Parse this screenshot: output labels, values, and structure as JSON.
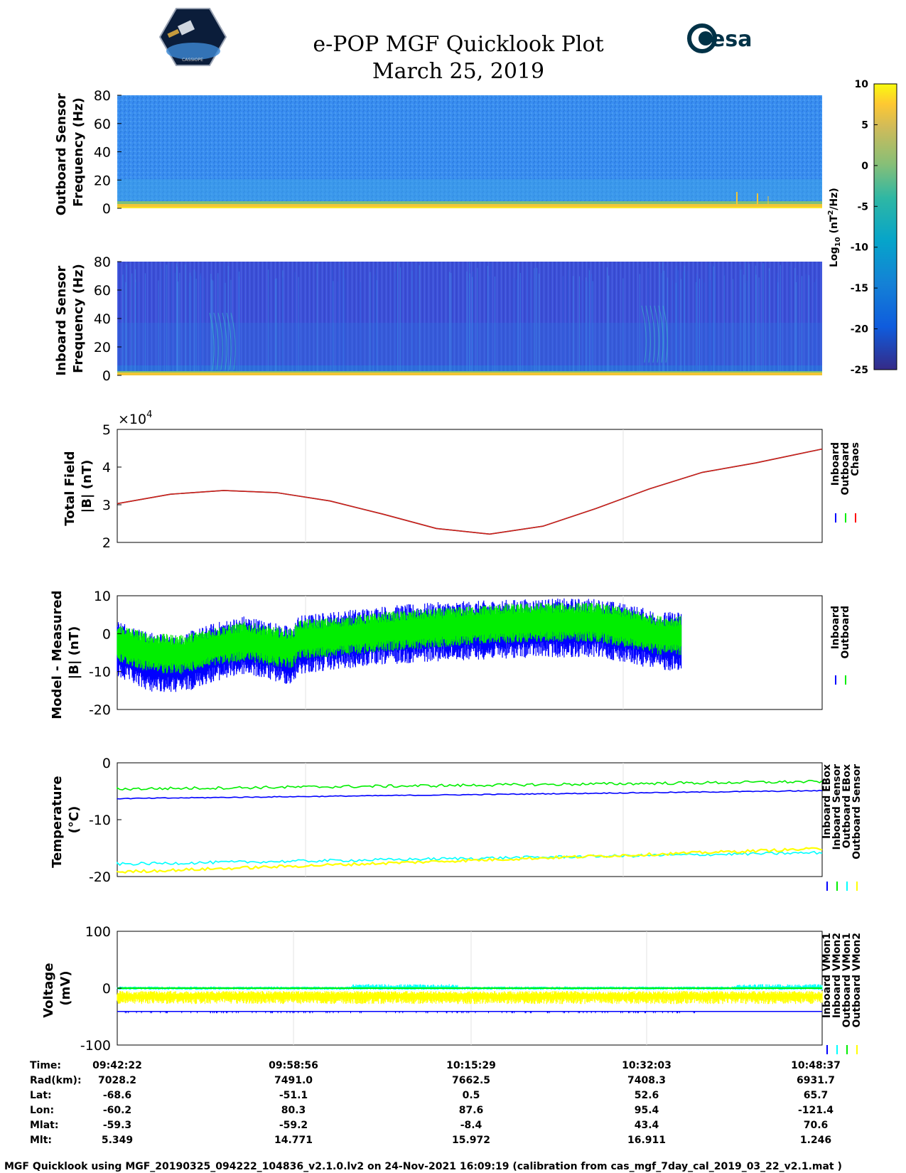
{
  "header": {
    "title": "e-POP MGF Quicklook Plot",
    "subtitle": "March 25, 2019",
    "esa_logo_text": "esa",
    "cassiope_logo_text": "CASSIOPE"
  },
  "colors": {
    "inboard": "#0000ff",
    "outboard": "#00ee00",
    "chaos": "#ff0000",
    "vmon2_inboard": "#00ffff",
    "vmon2_outboard": "#ffff00",
    "spectrogram_background": "#3b8eeb",
    "inboard_spectrogram_background": "#3f4fd6"
  },
  "chart_data": [
    {
      "type": "heatmap",
      "name": "outboard_spectrogram",
      "ylabel": [
        "Outboard Sensor",
        "Frequency (Hz)"
      ],
      "ylim": [
        0,
        80
      ],
      "yticks": [
        0,
        20,
        40,
        60,
        80
      ],
      "colorbar": {
        "label": "Log10 (nT^2/Hz)",
        "label_main": "Log",
        "label_sub": "10",
        "label_rest": " (nT",
        "label_sup": "2",
        "label_end": "/Hz)",
        "range": [
          -25,
          10
        ],
        "ticks": [
          10,
          5,
          0,
          -5,
          -10,
          -15,
          -20,
          -25
        ]
      }
    },
    {
      "type": "heatmap",
      "name": "inboard_spectrogram",
      "ylabel": [
        "Inboard Sensor",
        "Frequency (Hz)"
      ],
      "ylim": [
        0,
        80
      ],
      "yticks": [
        0,
        20,
        40,
        60,
        80
      ]
    },
    {
      "type": "line",
      "name": "total_field",
      "ylabel": [
        "Total Field",
        "|B| (nT)"
      ],
      "ylim": [
        20000,
        50000
      ],
      "ytick_labels": [
        "2",
        "3",
        "4",
        "5"
      ],
      "multiplier": "×10",
      "multiplier_exp": "4",
      "legend": [
        "Inboard",
        "Outboard",
        "Chaos"
      ],
      "x_minutes": [
        0,
        5,
        10,
        15,
        20,
        25,
        30,
        35,
        40,
        45,
        50,
        55,
        60,
        66.25
      ],
      "series": [
        {
          "name": "Inboard",
          "values": [
            30300,
            32800,
            33800,
            33200,
            31000,
            27500,
            23700,
            22200,
            24300,
            29000,
            34200,
            38600,
            41100,
            44800
          ]
        },
        {
          "name": "Outboard",
          "values": [
            30300,
            32800,
            33800,
            33200,
            31000,
            27500,
            23700,
            22200,
            24300,
            29000,
            34200,
            38600,
            41100,
            44800
          ]
        },
        {
          "name": "Chaos",
          "values": [
            30300,
            32800,
            33800,
            33200,
            31000,
            27500,
            23700,
            22200,
            24300,
            29000,
            34200,
            38600,
            41100,
            44800
          ]
        }
      ]
    },
    {
      "type": "line",
      "name": "model_minus_measured",
      "ylabel": [
        "Model - Measured",
        "|B| (nT)"
      ],
      "ylim": [
        -20,
        10
      ],
      "yticks": [
        -20,
        -10,
        0,
        10
      ],
      "legend": [
        "Inboard",
        "Outboard"
      ],
      "x_minutes": [
        0,
        3,
        6,
        9,
        12,
        15,
        16.5,
        17,
        20,
        25,
        30,
        35,
        40,
        45,
        48,
        51,
        53
      ],
      "series": [
        {
          "name": "Inboard",
          "center": [
            -4,
            -7.5,
            -8,
            -5,
            -3,
            -5,
            -6,
            -3,
            -2,
            -0.5,
            0.5,
            1,
            1.5,
            1.5,
            0,
            -2,
            -2
          ],
          "spread": 6
        },
        {
          "name": "Outboard",
          "center": [
            -2.5,
            -5,
            -5.5,
            -3.5,
            -2,
            -3.5,
            -4,
            -1.5,
            -1,
            0.5,
            1.5,
            2.5,
            3,
            3,
            1.5,
            -0.5,
            -0.5
          ],
          "spread": 4
        }
      ]
    },
    {
      "type": "line",
      "name": "temperature",
      "ylabel": [
        "Temperature",
        "(°C)"
      ],
      "ylim": [
        -20,
        0
      ],
      "yticks": [
        -20,
        -10,
        0
      ],
      "legend": [
        "Inboard EBox",
        "Inboard Sensor",
        "Outboard EBox",
        "Outboard Sensor"
      ],
      "x_minutes": [
        0,
        66.25
      ],
      "series": [
        {
          "name": "Inboard EBox",
          "values": [
            -6.3,
            -4.9
          ]
        },
        {
          "name": "Inboard Sensor",
          "values": [
            -4.6,
            -3.3
          ]
        },
        {
          "name": "Outboard EBox",
          "values": [
            -17.8,
            -15.8
          ]
        },
        {
          "name": "Outboard Sensor",
          "values": [
            -19.2,
            -15.1
          ]
        }
      ]
    },
    {
      "type": "line",
      "name": "voltage",
      "ylabel": [
        "Voltage",
        "(mV)"
      ],
      "ylim": [
        -100,
        100
      ],
      "yticks": [
        -100,
        0,
        100
      ],
      "legend": [
        "Inboard VMon1",
        "Inboard VMon2",
        "Outboard VMon1",
        "Outboard VMon2"
      ],
      "x_minutes": [
        0,
        66.25
      ],
      "series": [
        {
          "name": "Inboard VMon1",
          "values": [
            -41,
            -41
          ]
        },
        {
          "name": "Inboard VMon2",
          "values": [
            -3,
            -3
          ]
        },
        {
          "name": "Outboard VMon1",
          "values": [
            0,
            0
          ]
        },
        {
          "name": "Outboard VMon2",
          "values": [
            -15,
            -15
          ]
        }
      ]
    }
  ],
  "ephemeris": {
    "labels": [
      "Time:",
      "Rad(km):",
      "Lat:",
      "Lon:",
      "Mlat:",
      "Mlt:"
    ],
    "columns": [
      [
        "09:42:22",
        "7028.2",
        "-68.6",
        "-60.2",
        "-59.3",
        "5.349"
      ],
      [
        "09:58:56",
        "7491.0",
        "-51.1",
        "80.3",
        "-59.2",
        "14.771"
      ],
      [
        "10:15:29",
        "7662.5",
        "0.5",
        "87.6",
        "-8.4",
        "15.972"
      ],
      [
        "10:32:03",
        "7408.3",
        "52.6",
        "95.4",
        "43.4",
        "16.911"
      ],
      [
        "10:48:37",
        "6931.7",
        "65.7",
        "-121.4",
        "70.6",
        "1.246"
      ]
    ]
  },
  "footer": "MGF Quicklook using MGF_20190325_094222_104836_v2.1.0.lv2 on 24-Nov-2021 16:09:19 (calibration from cas_mgf_7day_cal_2019_03_22_v2.1.mat )"
}
